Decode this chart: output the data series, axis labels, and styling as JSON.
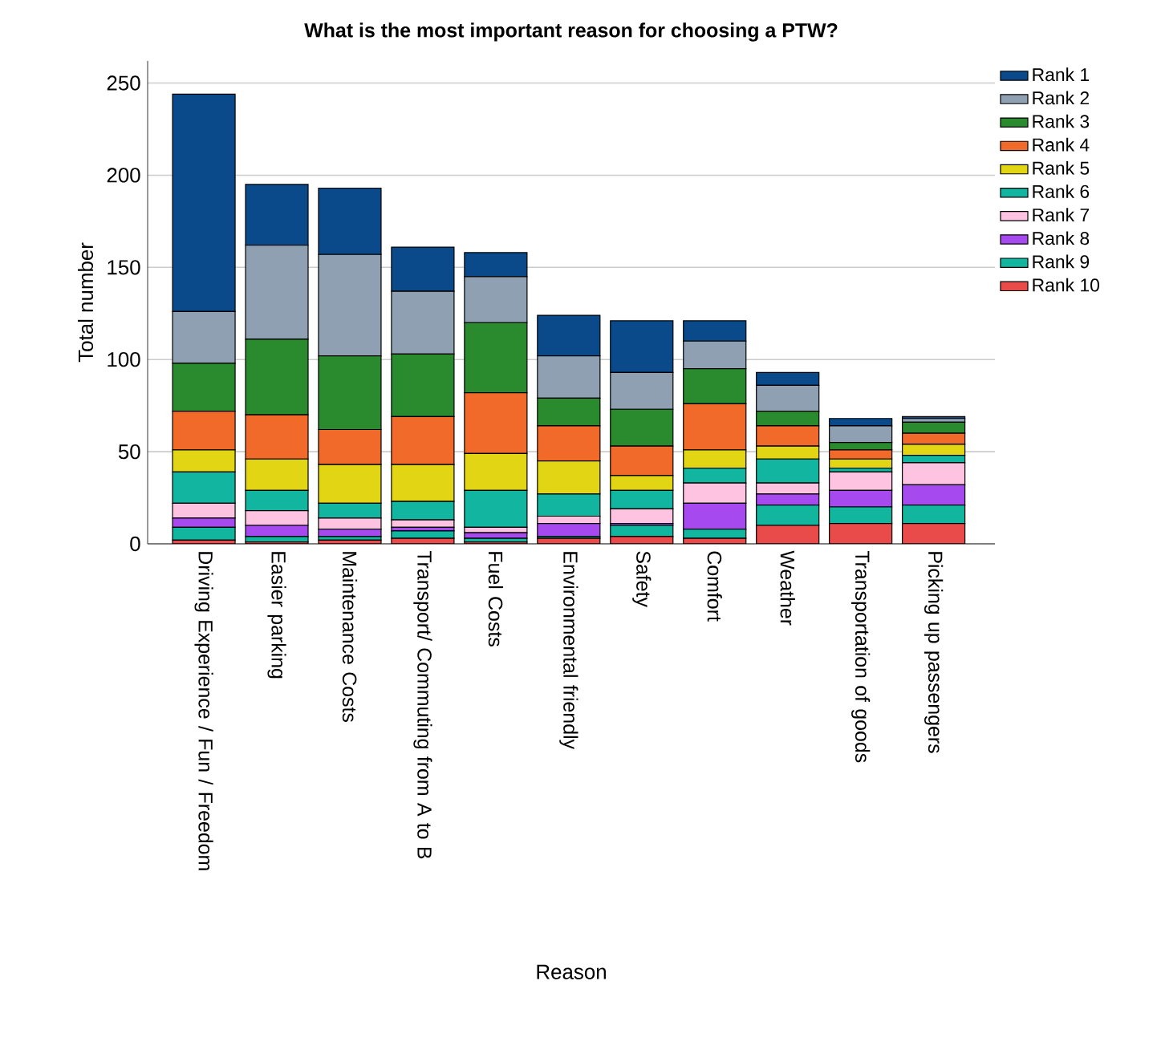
{
  "chart_data": {
    "type": "bar",
    "stacked": true,
    "title": "What is the most important reason for choosing a PTW?",
    "xlabel": "Reason",
    "ylabel": "Total number",
    "categories": [
      "Driving Experience / Fun / Freedom",
      "Easier parking",
      "Maintenance Costs",
      "Transport/ Commuting from A to B",
      "Fuel Costs",
      "Environmental friendly",
      "Safety",
      "Comfort",
      "Weather",
      "Transportation of goods",
      "Picking up passengers"
    ],
    "series": [
      {
        "name": "Rank 10",
        "color": "#e94b4b",
        "values": [
          2,
          1,
          2,
          3,
          1,
          3,
          4,
          3,
          10,
          11,
          11
        ]
      },
      {
        "name": "Rank 9",
        "color": "#12b59e",
        "values": [
          7,
          3,
          2,
          4,
          2,
          1,
          6,
          5,
          11,
          9,
          10
        ]
      },
      {
        "name": "Rank 8",
        "color": "#a64af0",
        "values": [
          5,
          6,
          4,
          2,
          3,
          7,
          1,
          14,
          6,
          9,
          11
        ]
      },
      {
        "name": "Rank 7",
        "color": "#fdc3e0",
        "values": [
          8,
          8,
          6,
          4,
          3,
          4,
          8,
          11,
          6,
          10,
          12
        ]
      },
      {
        "name": "Rank 6",
        "color": "#11b5a0",
        "values": [
          17,
          11,
          8,
          10,
          20,
          12,
          10,
          8,
          13,
          2,
          4
        ]
      },
      {
        "name": "Rank 5",
        "color": "#e2d614",
        "values": [
          12,
          17,
          21,
          20,
          20,
          18,
          8,
          10,
          7,
          5,
          6
        ]
      },
      {
        "name": "Rank 4",
        "color": "#f26a2a",
        "values": [
          21,
          24,
          19,
          26,
          33,
          19,
          16,
          25,
          11,
          5,
          6
        ]
      },
      {
        "name": "Rank 3",
        "color": "#2a8a2e",
        "values": [
          26,
          41,
          40,
          34,
          38,
          15,
          20,
          19,
          8,
          4,
          6
        ]
      },
      {
        "name": "Rank 2",
        "color": "#8fa0b3",
        "values": [
          28,
          51,
          55,
          34,
          25,
          23,
          20,
          15,
          14,
          9,
          2
        ]
      },
      {
        "name": "Rank 1",
        "color": "#0a4a8a",
        "values": [
          118,
          33,
          36,
          24,
          13,
          22,
          28,
          11,
          7,
          4,
          1
        ]
      }
    ],
    "ylim": [
      0,
      262
    ],
    "yticks": [
      0,
      50,
      100,
      150,
      200,
      250
    ],
    "grid": "y",
    "legend": "top right"
  }
}
